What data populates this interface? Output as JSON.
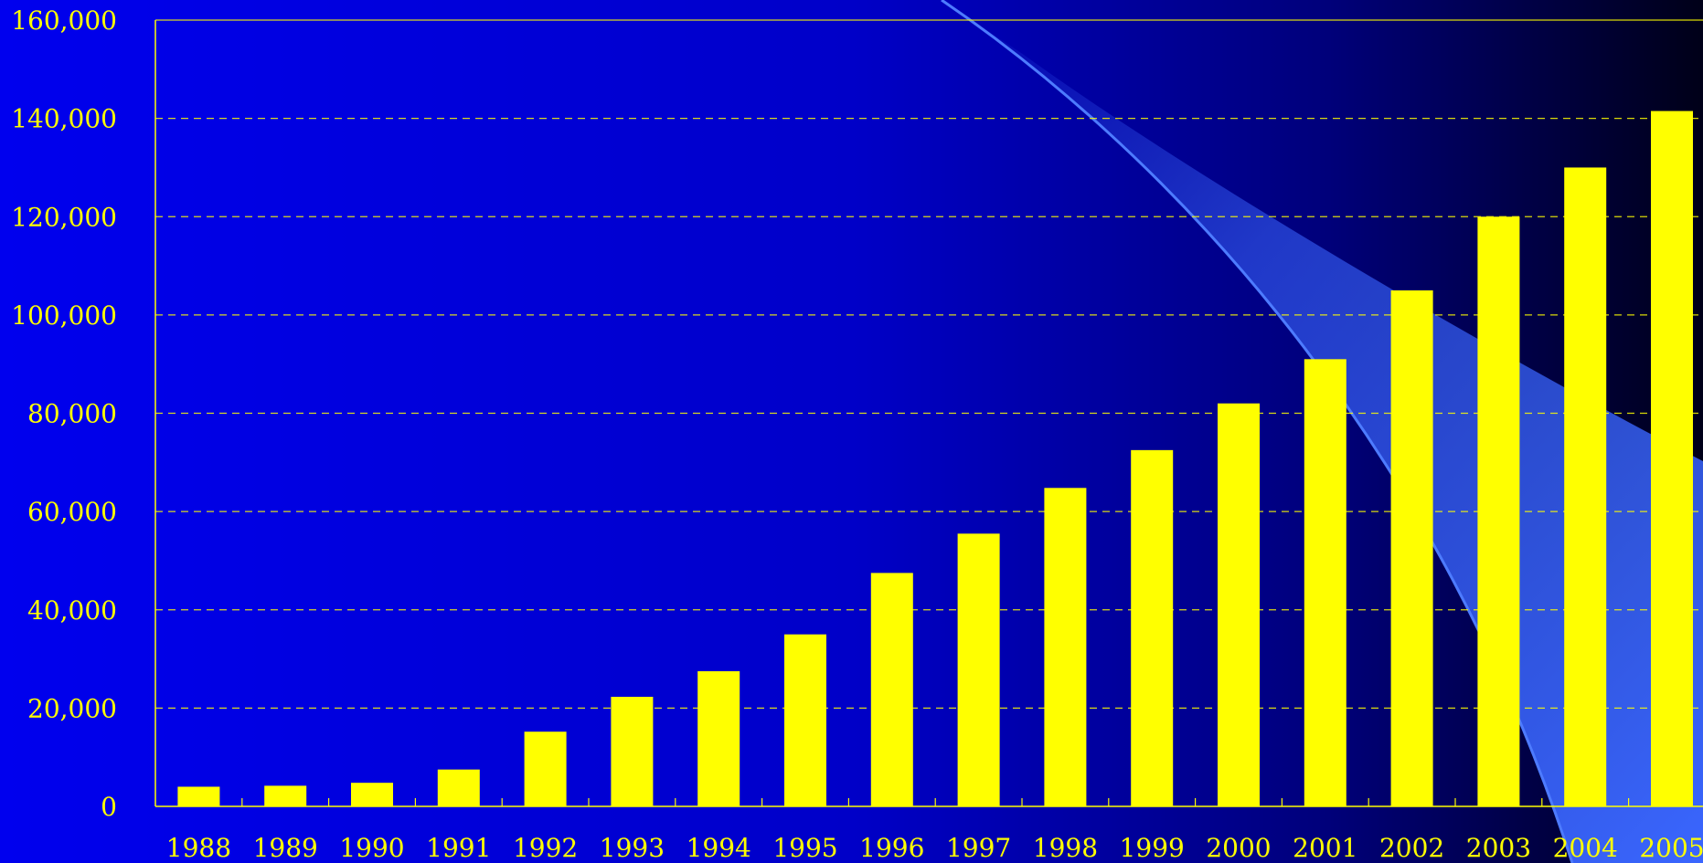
{
  "chart_data": {
    "type": "bar",
    "title": "",
    "xlabel": "",
    "ylabel": "",
    "categories": [
      "1988",
      "1989",
      "1990",
      "1991",
      "1992",
      "1993",
      "1994",
      "1995",
      "1996",
      "1997",
      "1998",
      "1999",
      "2000",
      "2001",
      "2002",
      "2003",
      "2004",
      "2005"
    ],
    "series": [
      {
        "values": [
          4000,
          4200,
          4800,
          7500,
          15200,
          22300,
          27500,
          35000,
          47500,
          55500,
          64800,
          72500,
          82000,
          91000,
          105000,
          120000,
          130000,
          141500
        ]
      }
    ],
    "ylim": [
      0,
      160000
    ],
    "yticks": [
      0,
      20000,
      40000,
      60000,
      80000,
      100000,
      120000,
      140000,
      160000
    ],
    "ytick_labels": [
      "0",
      "20,000",
      "40,000",
      "60,000",
      "80,000",
      "100,000",
      "120,000",
      "140,000",
      "160,000"
    ],
    "grid": true,
    "legend": "none",
    "colors": {
      "bar": "#FFFF00",
      "text": "#FFFF00",
      "background_left": "#0000EE",
      "background_right": "#000018",
      "swoosh": "#3A66FF"
    }
  }
}
